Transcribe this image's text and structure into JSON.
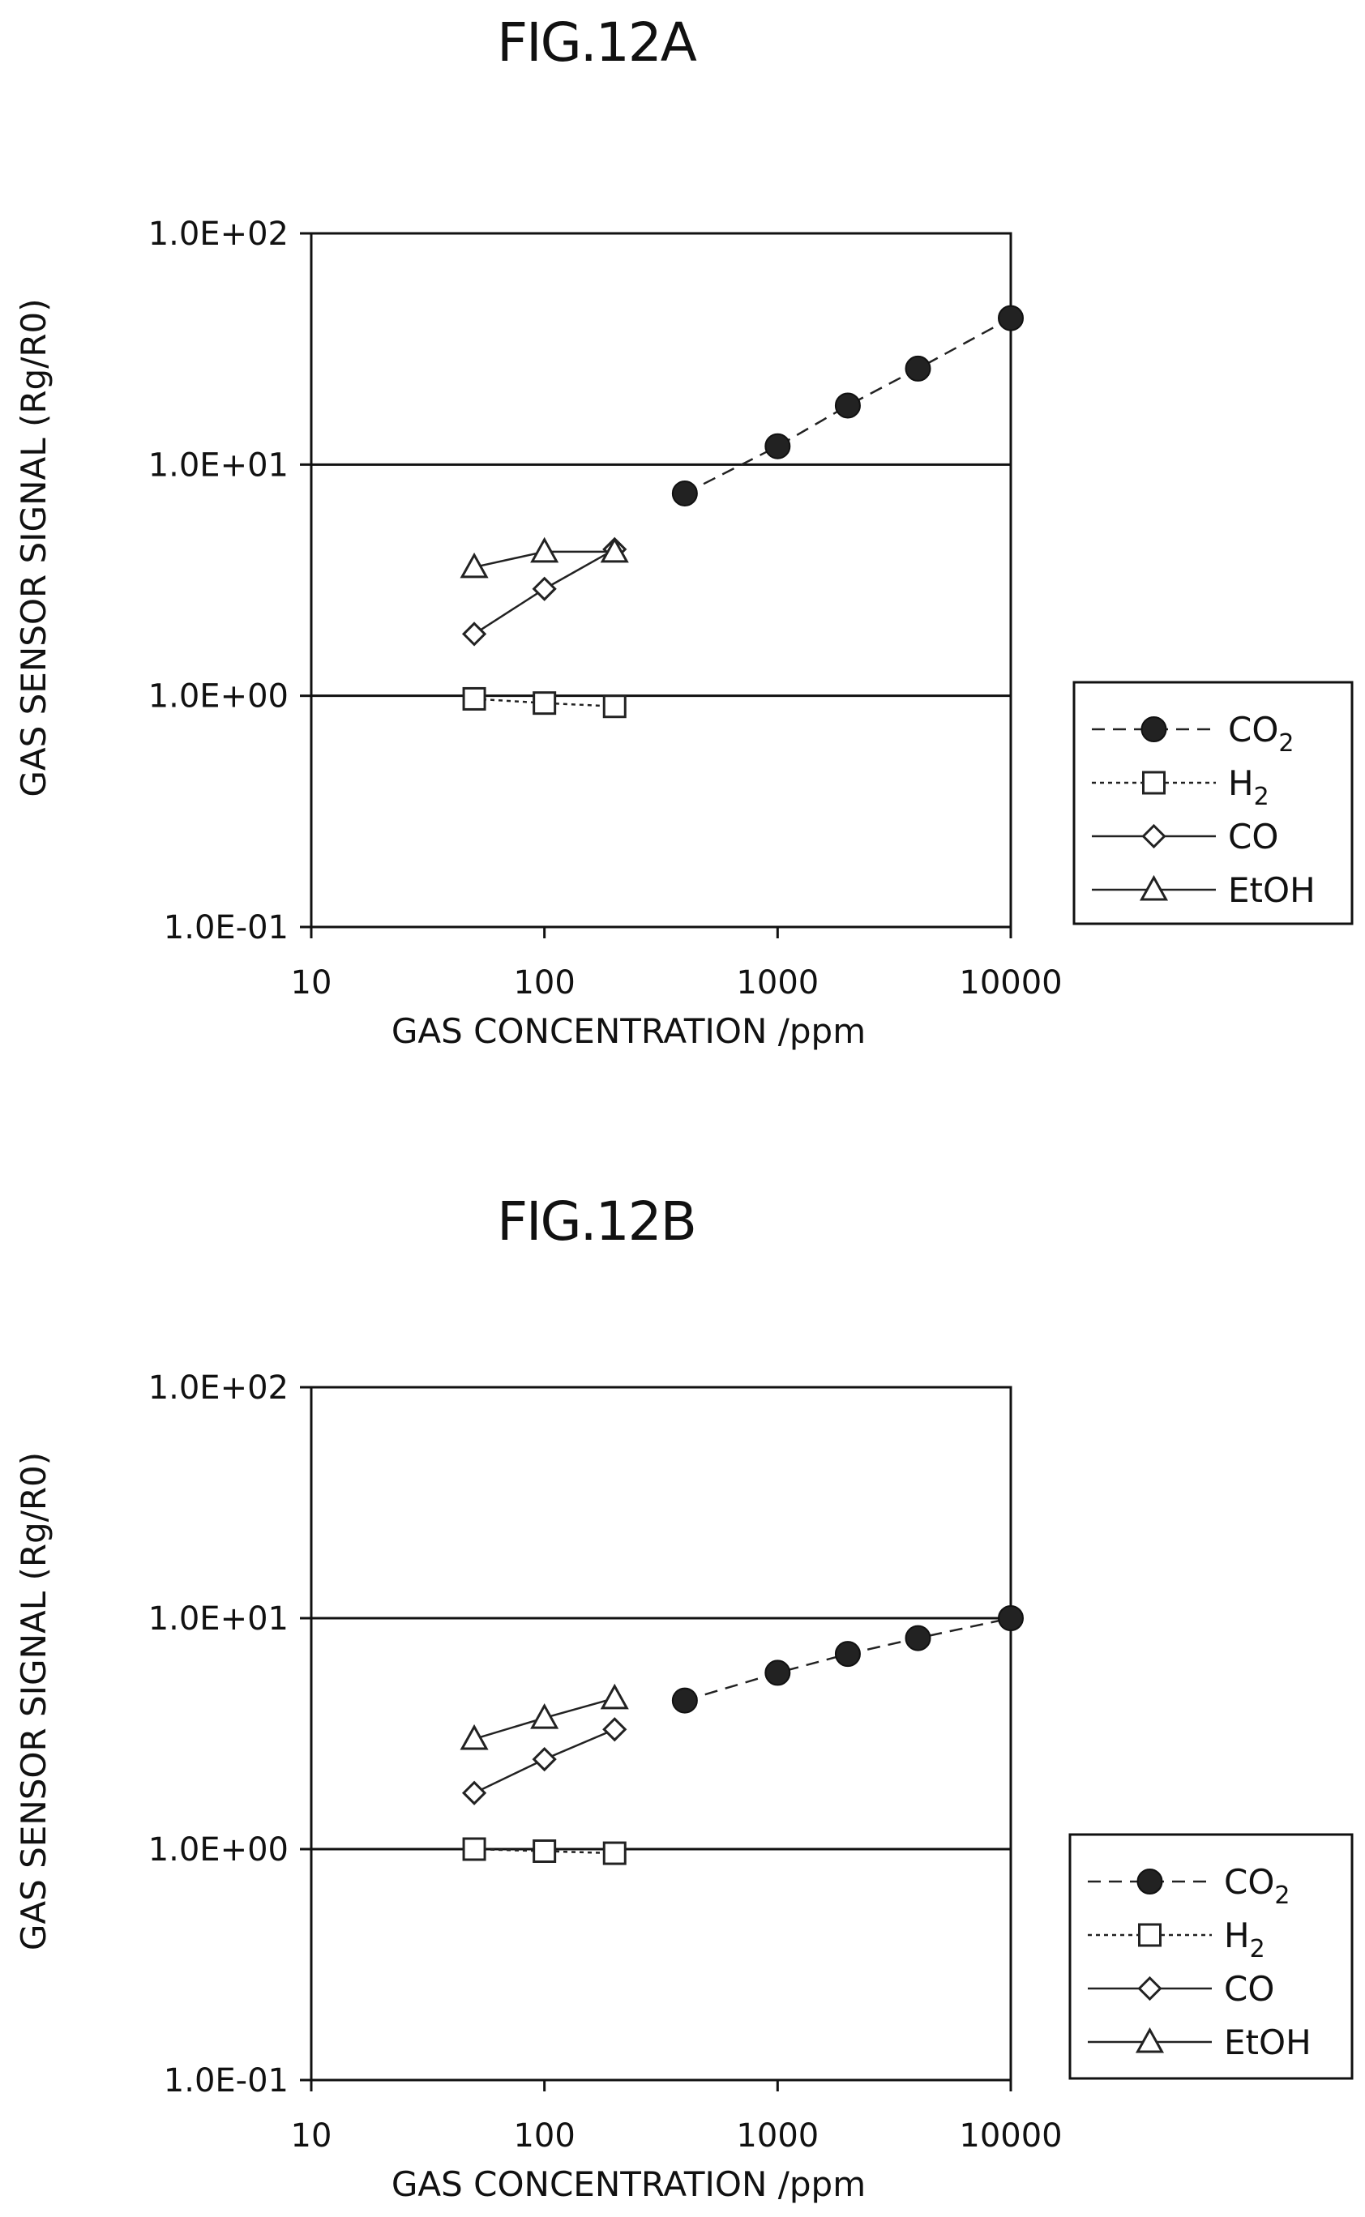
{
  "chart_data": [
    {
      "type": "scatter",
      "title": "FIG.12A",
      "xlabel": "GAS CONCENTRATION /ppm",
      "ylabel": "GAS SENSOR SIGNAL (Rg/R0)",
      "xscale": "log",
      "yscale": "log",
      "xlim": [
        10,
        10000
      ],
      "ylim": [
        0.1,
        100
      ],
      "xticks": [
        "10",
        "100",
        "1000",
        "10000"
      ],
      "yticks": [
        "1.0E-01",
        "1.0E+00",
        "1.0E+01",
        "1.0E+02"
      ],
      "grid": "horizontal at 1.0E+00 and 1.0E+01",
      "legend_position": "right",
      "series": [
        {
          "name": "CO2",
          "label_main": "CO",
          "label_sub": "2",
          "marker": "filled-circle",
          "line": "dashed",
          "color": "#222222",
          "x": [
            400,
            1000,
            2000,
            4000,
            10000
          ],
          "y": [
            7.5,
            12,
            18,
            26,
            43
          ]
        },
        {
          "name": "H2",
          "label_main": "H",
          "label_sub": "2",
          "marker": "open-square",
          "line": "dotted",
          "color": "#222222",
          "x": [
            50,
            100,
            200
          ],
          "y": [
            0.97,
            0.93,
            0.9
          ]
        },
        {
          "name": "CO",
          "label_main": "CO",
          "label_sub": "",
          "marker": "open-diamond",
          "line": "solid",
          "color": "#222222",
          "x": [
            50,
            100,
            200
          ],
          "y": [
            1.85,
            2.9,
            4.3
          ]
        },
        {
          "name": "EtOH",
          "label_main": "EtOH",
          "label_sub": "",
          "marker": "open-triangle",
          "line": "solid",
          "color": "#222222",
          "x": [
            50,
            100,
            200
          ],
          "y": [
            3.6,
            4.2,
            4.2
          ]
        }
      ]
    },
    {
      "type": "scatter",
      "title": "FIG.12B",
      "xlabel": "GAS CONCENTRATION /ppm",
      "ylabel": "GAS SENSOR SIGNAL (Rg/R0)",
      "xscale": "log",
      "yscale": "log",
      "xlim": [
        10,
        10000
      ],
      "ylim": [
        0.1,
        100
      ],
      "xticks": [
        "10",
        "100",
        "1000",
        "10000"
      ],
      "yticks": [
        "1.0E-01",
        "1.0E+00",
        "1.0E+01",
        "1.0E+02"
      ],
      "grid": "horizontal at 1.0E+00 and 1.0E+01",
      "legend_position": "right",
      "series": [
        {
          "name": "CO2",
          "label_main": "CO",
          "label_sub": "2",
          "marker": "filled-circle",
          "line": "dashed",
          "color": "#222222",
          "x": [
            400,
            1000,
            2000,
            4000,
            10000
          ],
          "y": [
            4.4,
            5.8,
            7.0,
            8.2,
            10
          ]
        },
        {
          "name": "H2",
          "label_main": "H",
          "label_sub": "2",
          "marker": "open-square",
          "line": "dotted",
          "color": "#222222",
          "x": [
            50,
            100,
            200
          ],
          "y": [
            1.0,
            0.98,
            0.96
          ]
        },
        {
          "name": "CO",
          "label_main": "CO",
          "label_sub": "",
          "marker": "open-diamond",
          "line": "solid",
          "color": "#222222",
          "x": [
            50,
            100,
            200
          ],
          "y": [
            1.75,
            2.45,
            3.3
          ]
        },
        {
          "name": "EtOH",
          "label_main": "EtOH",
          "label_sub": "",
          "marker": "open-triangle",
          "line": "solid",
          "color": "#222222",
          "x": [
            50,
            100,
            200
          ],
          "y": [
            3.0,
            3.7,
            4.5
          ]
        }
      ]
    }
  ]
}
